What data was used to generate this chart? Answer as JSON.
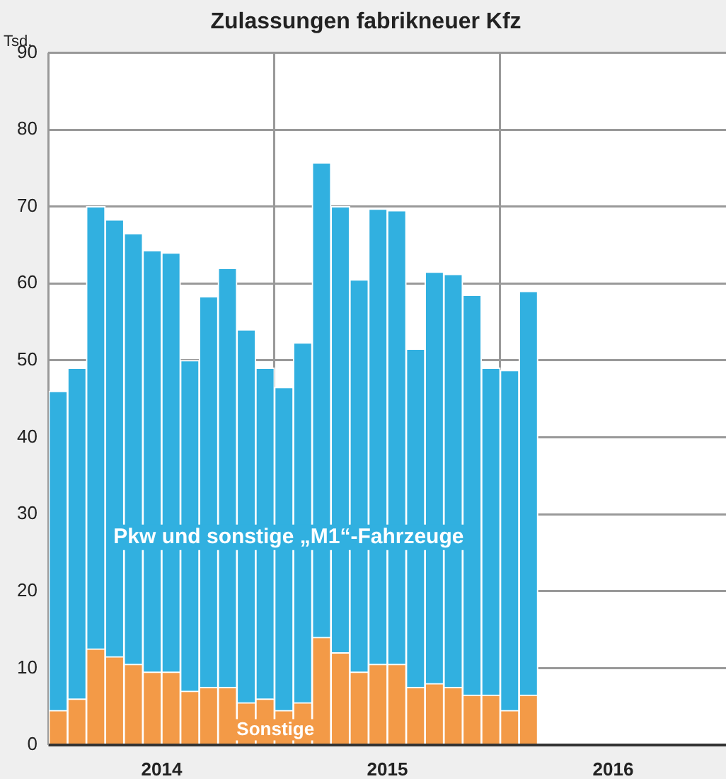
{
  "chart_data": {
    "type": "bar",
    "title": "Zulassungen fabrikneuer Kfz",
    "ylabel": "Tsd.",
    "stacked": true,
    "categories": [
      null,
      null,
      null,
      null,
      null,
      null,
      null,
      null,
      null,
      null,
      null,
      null,
      null,
      null,
      null,
      null,
      null,
      null,
      null,
      null,
      null,
      null,
      null,
      null,
      null,
      null,
      null,
      null,
      null,
      null,
      null,
      null,
      null,
      null,
      null,
      null
    ],
    "series": [
      {
        "name": "Sonstige",
        "color": "#f39a47",
        "values": [
          4.5,
          6,
          12.5,
          11.5,
          10.5,
          9.5,
          9.5,
          7,
          7.5,
          7.5,
          5.5,
          6,
          4.5,
          5.5,
          14,
          12,
          9.5,
          10.5,
          10.5,
          7.5,
          8,
          7.5,
          6.5,
          6.5,
          4.5,
          6.5,
          null,
          null,
          null,
          null,
          null,
          null,
          null,
          null,
          null,
          null
        ]
      },
      {
        "name": "Pkw und sonstige „M1“-Fahrzeuge",
        "color": "#31b0e0",
        "values": [
          41.5,
          43,
          57.5,
          56.8,
          56,
          54.8,
          54.5,
          43,
          50.8,
          54.5,
          48.5,
          43,
          42,
          46.8,
          61.7,
          58,
          51,
          59.2,
          59,
          44,
          53.5,
          53.7,
          52,
          42.5,
          44.2,
          52.5,
          null,
          null,
          null,
          null,
          null,
          null,
          null,
          null,
          null,
          null
        ]
      }
    ],
    "ylim": [
      0,
      90
    ],
    "yticks": [
      0,
      10,
      20,
      30,
      40,
      50,
      60,
      70,
      80,
      90
    ],
    "grid": true,
    "legend": false,
    "annotations": [
      "2014",
      "2015",
      "2016"
    ]
  }
}
